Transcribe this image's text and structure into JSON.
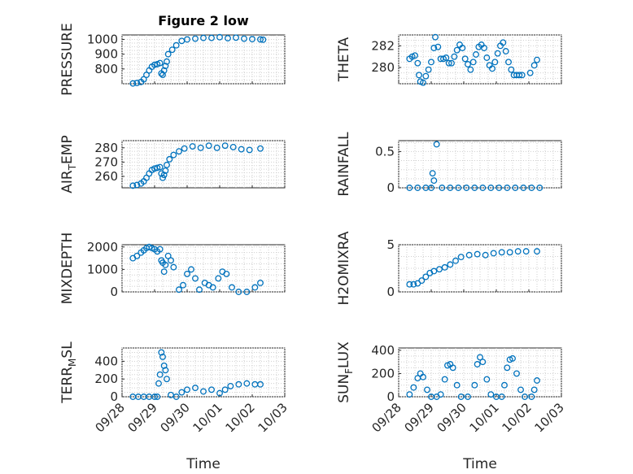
{
  "figure": {
    "title": "Figure 2 low",
    "accent_color": "#0072bd"
  },
  "chart_data": [
    {
      "type": "scatter",
      "ylabel": "PRESSURE",
      "xlabel": "",
      "ylim": [
        700,
        1030
      ],
      "yticks": [
        800,
        900,
        1000
      ],
      "xlim": [
        "09/28",
        "10/03"
      ],
      "xticks": [],
      "grid": true,
      "points": [
        [
          "09/28 08:00",
          702
        ],
        [
          "09/28 11:00",
          705
        ],
        [
          "09/28 14:00",
          712
        ],
        [
          "09/28 16:00",
          730
        ],
        [
          "09/28 18:00",
          760
        ],
        [
          "09/28 20:00",
          790
        ],
        [
          "09/28 22:00",
          815
        ],
        [
          "09/29 00:00",
          828
        ],
        [
          "09/29 02:00",
          832
        ],
        [
          "09/29 04:00",
          840
        ],
        [
          "09/29 05:00",
          770
        ],
        [
          "09/29 06:00",
          760
        ],
        [
          "09/29 07:00",
          790
        ],
        [
          "09/29 08:00",
          820
        ],
        [
          "09/29 09:00",
          850
        ],
        [
          "09/29 10:00",
          900
        ],
        [
          "09/29 13:00",
          930
        ],
        [
          "09/29 16:00",
          960
        ],
        [
          "09/29 20:00",
          990
        ],
        [
          "09/30 00:00",
          1000
        ],
        [
          "09/30 06:00",
          1005
        ],
        [
          "09/30 12:00",
          1010
        ],
        [
          "09/30 18:00",
          1010
        ],
        [
          "10/01 00:00",
          1015
        ],
        [
          "10/01 06:00",
          1008
        ],
        [
          "10/01 12:00",
          1012
        ],
        [
          "10/01 18:00",
          1005
        ],
        [
          "10/02 00:00",
          1002
        ],
        [
          "10/02 06:00",
          1000
        ],
        [
          "10/02 08:00",
          998
        ]
      ]
    },
    {
      "type": "scatter",
      "ylabel": "THETA",
      "xlabel": "",
      "ylim": [
        278.5,
        283
      ],
      "yticks": [
        280,
        282
      ],
      "xlim": [
        "09/28",
        "10/03"
      ],
      "xticks": [],
      "grid": true,
      "points": [
        [
          "09/28 08:00",
          280.8
        ],
        [
          "09/28 10:00",
          281.0
        ],
        [
          "09/28 12:00",
          281.1
        ],
        [
          "09/28 14:00",
          280.4
        ],
        [
          "09/28 15:00",
          279.3
        ],
        [
          "09/28 16:00",
          278.7
        ],
        [
          "09/28 18:00",
          278.6
        ],
        [
          "09/28 20:00",
          279.2
        ],
        [
          "09/28 22:00",
          279.8
        ],
        [
          "09/29 00:00",
          280.5
        ],
        [
          "09/29 02:00",
          281.8
        ],
        [
          "09/29 03:00",
          282.8
        ],
        [
          "09/29 05:00",
          281.9
        ],
        [
          "09/29 07:00",
          280.8
        ],
        [
          "09/29 09:00",
          280.8
        ],
        [
          "09/29 11:00",
          280.9
        ],
        [
          "09/29 13:00",
          280.4
        ],
        [
          "09/29 15:00",
          280.4
        ],
        [
          "09/29 17:00",
          281.0
        ],
        [
          "09/29 19:00",
          281.6
        ],
        [
          "09/29 21:00",
          282.1
        ],
        [
          "09/29 23:00",
          281.8
        ],
        [
          "09/30 01:00",
          280.8
        ],
        [
          "09/30 03:00",
          280.3
        ],
        [
          "09/30 05:00",
          279.8
        ],
        [
          "09/30 07:00",
          280.5
        ],
        [
          "09/30 09:00",
          281.2
        ],
        [
          "09/30 11:00",
          281.9
        ],
        [
          "09/30 13:00",
          282.1
        ],
        [
          "09/30 15:00",
          281.8
        ],
        [
          "09/30 17:00",
          280.9
        ],
        [
          "09/30 19:00",
          280.2
        ],
        [
          "09/30 21:00",
          279.9
        ],
        [
          "09/30 23:00",
          280.5
        ],
        [
          "10/01 01:00",
          281.3
        ],
        [
          "10/01 03:00",
          282.0
        ],
        [
          "10/01 05:00",
          282.3
        ],
        [
          "10/01 07:00",
          281.5
        ],
        [
          "10/01 09:00",
          280.5
        ],
        [
          "10/01 11:00",
          279.8
        ],
        [
          "10/01 13:00",
          279.3
        ],
        [
          "10/01 15:00",
          279.3
        ],
        [
          "10/01 17:00",
          279.3
        ],
        [
          "10/01 19:00",
          279.3
        ],
        [
          "10/02 01:00",
          279.5
        ],
        [
          "10/02 04:00",
          280.2
        ],
        [
          "10/02 06:00",
          280.7
        ]
      ]
    },
    {
      "type": "scatter",
      "ylabel": "AIR_TEMP",
      "xlabel": "",
      "ylim": [
        252,
        285
      ],
      "yticks": [
        260,
        270,
        280
      ],
      "xlim": [
        "09/28",
        "10/03"
      ],
      "xticks": [],
      "grid": true,
      "points": [
        [
          "09/28 08:00",
          253.5
        ],
        [
          "09/28 11:00",
          254.0
        ],
        [
          "09/28 14:00",
          255.0
        ],
        [
          "09/28 16:00",
          256.5
        ],
        [
          "09/28 18:00",
          259.0
        ],
        [
          "09/28 20:00",
          262.0
        ],
        [
          "09/28 22:00",
          264.5
        ],
        [
          "09/29 00:00",
          265.5
        ],
        [
          "09/29 02:00",
          266.0
        ],
        [
          "09/29 04:00",
          266.5
        ],
        [
          "09/29 05:00",
          262.0
        ],
        [
          "09/29 06:00",
          259.0
        ],
        [
          "09/29 07:00",
          261.0
        ],
        [
          "09/29 08:00",
          264.0
        ],
        [
          "09/29 09:00",
          268.0
        ],
        [
          "09/29 11:00",
          272.0
        ],
        [
          "09/29 14:00",
          275.0
        ],
        [
          "09/29 18:00",
          277.5
        ],
        [
          "09/29 22:00",
          279.5
        ],
        [
          "09/30 04:00",
          281.0
        ],
        [
          "09/30 10:00",
          280.0
        ],
        [
          "09/30 16:00",
          281.5
        ],
        [
          "09/30 22:00",
          280.0
        ],
        [
          "10/01 04:00",
          281.5
        ],
        [
          "10/01 10:00",
          280.5
        ],
        [
          "10/01 16:00",
          279.0
        ],
        [
          "10/01 22:00",
          278.5
        ],
        [
          "10/02 06:00",
          279.5
        ]
      ]
    },
    {
      "type": "scatter",
      "ylabel": "RAINFALL",
      "xlabel": "",
      "ylim": [
        0,
        0.65
      ],
      "yticks": [
        0,
        0.5
      ],
      "xlim": [
        "09/28",
        "10/03"
      ],
      "xticks": [],
      "grid": true,
      "points": [
        [
          "09/28 08:00",
          0
        ],
        [
          "09/28 14:00",
          0
        ],
        [
          "09/28 20:00",
          0
        ],
        [
          "09/29 00:00",
          0
        ],
        [
          "09/29 01:00",
          0.2
        ],
        [
          "09/29 02:00",
          0.1
        ],
        [
          "09/29 04:00",
          0.6
        ],
        [
          "09/29 08:00",
          0
        ],
        [
          "09/29 14:00",
          0
        ],
        [
          "09/29 20:00",
          0
        ],
        [
          "09/30 02:00",
          0
        ],
        [
          "09/30 08:00",
          0
        ],
        [
          "09/30 14:00",
          0
        ],
        [
          "09/30 20:00",
          0
        ],
        [
          "10/01 02:00",
          0
        ],
        [
          "10/01 08:00",
          0
        ],
        [
          "10/01 14:00",
          0
        ],
        [
          "10/01 20:00",
          0
        ],
        [
          "10/02 02:00",
          0
        ],
        [
          "10/02 08:00",
          0
        ]
      ]
    },
    {
      "type": "scatter",
      "ylabel": "MIXDEPTH",
      "xlabel": "",
      "ylim": [
        0,
        2100
      ],
      "yticks": [
        0,
        1000,
        2000
      ],
      "xlim": [
        "09/28",
        "10/03"
      ],
      "xticks": [],
      "grid": true,
      "points": [
        [
          "09/28 08:00",
          1500
        ],
        [
          "09/28 11:00",
          1600
        ],
        [
          "09/28 14:00",
          1750
        ],
        [
          "09/28 16:00",
          1850
        ],
        [
          "09/28 18:00",
          1950
        ],
        [
          "09/28 20:00",
          2000
        ],
        [
          "09/28 22:00",
          1950
        ],
        [
          "09/29 00:00",
          1900
        ],
        [
          "09/29 02:00",
          1800
        ],
        [
          "09/29 04:00",
          1900
        ],
        [
          "09/29 05:00",
          1400
        ],
        [
          "09/29 06:00",
          1300
        ],
        [
          "09/29 07:00",
          900
        ],
        [
          "09/29 08:00",
          1200
        ],
        [
          "09/29 10:00",
          1600
        ],
        [
          "09/29 12:00",
          1400
        ],
        [
          "09/29 14:00",
          1100
        ],
        [
          "09/29 18:00",
          100
        ],
        [
          "09/29 21:00",
          300
        ],
        [
          "09/30 00:00",
          800
        ],
        [
          "09/30 03:00",
          1000
        ],
        [
          "09/30 06:00",
          600
        ],
        [
          "09/30 09:00",
          100
        ],
        [
          "09/30 13:00",
          400
        ],
        [
          "09/30 16:00",
          300
        ],
        [
          "09/30 19:00",
          200
        ],
        [
          "09/30 23:00",
          600
        ],
        [
          "10/01 02:00",
          900
        ],
        [
          "10/01 05:00",
          800
        ],
        [
          "10/01 09:00",
          200
        ],
        [
          "10/01 14:00",
          0
        ],
        [
          "10/01 20:00",
          0
        ],
        [
          "10/02 02:00",
          200
        ],
        [
          "10/02 06:00",
          400
        ]
      ]
    },
    {
      "type": "scatter",
      "ylabel": "H2OMIXRA",
      "xlabel": "",
      "ylim": [
        0,
        5
      ],
      "yticks": [
        0,
        5
      ],
      "xlim": [
        "09/28",
        "10/03"
      ],
      "xticks": [],
      "grid": true,
      "points": [
        [
          "09/28 08:00",
          0.8
        ],
        [
          "09/28 11:00",
          0.8
        ],
        [
          "09/28 14:00",
          0.9
        ],
        [
          "09/28 17:00",
          1.2
        ],
        [
          "09/28 20:00",
          1.6
        ],
        [
          "09/28 23:00",
          2.0
        ],
        [
          "09/29 02:00",
          2.2
        ],
        [
          "09/29 06:00",
          2.4
        ],
        [
          "09/29 10:00",
          2.6
        ],
        [
          "09/29 14:00",
          2.9
        ],
        [
          "09/29 18:00",
          3.3
        ],
        [
          "09/29 22:00",
          3.7
        ],
        [
          "09/30 04:00",
          3.9
        ],
        [
          "09/30 10:00",
          4.0
        ],
        [
          "09/30 16:00",
          3.9
        ],
        [
          "09/30 22:00",
          4.1
        ],
        [
          "10/01 04:00",
          4.2
        ],
        [
          "10/01 10:00",
          4.2
        ],
        [
          "10/01 16:00",
          4.3
        ],
        [
          "10/01 22:00",
          4.3
        ],
        [
          "10/02 06:00",
          4.3
        ]
      ]
    },
    {
      "type": "scatter",
      "ylabel": "TERR_MSL",
      "xlabel": "Time",
      "ylim": [
        0,
        550
      ],
      "yticks": [
        0,
        200,
        400
      ],
      "xlim": [
        "09/28",
        "10/03"
      ],
      "xticks": [
        "09/28",
        "09/29",
        "09/30",
        "10/01",
        "10/02",
        "10/03"
      ],
      "grid": true,
      "points": [
        [
          "09/28 08:00",
          0
        ],
        [
          "09/28 12:00",
          0
        ],
        [
          "09/28 16:00",
          0
        ],
        [
          "09/28 20:00",
          0
        ],
        [
          "09/29 00:00",
          0
        ],
        [
          "09/29 02:00",
          0
        ],
        [
          "09/29 03:00",
          150
        ],
        [
          "09/29 04:00",
          250
        ],
        [
          "09/29 05:00",
          500
        ],
        [
          "09/29 06:00",
          450
        ],
        [
          "09/29 07:00",
          350
        ],
        [
          "09/29 08:00",
          300
        ],
        [
          "09/29 09:00",
          200
        ],
        [
          "09/29 12:00",
          20
        ],
        [
          "09/29 16:00",
          0
        ],
        [
          "09/29 20:00",
          50
        ],
        [
          "09/30 00:00",
          80
        ],
        [
          "09/30 06:00",
          100
        ],
        [
          "09/30 12:00",
          60
        ],
        [
          "09/30 18:00",
          80
        ],
        [
          "10/01 00:00",
          40
        ],
        [
          "10/01 04:00",
          80
        ],
        [
          "10/01 08:00",
          120
        ],
        [
          "10/01 14:00",
          140
        ],
        [
          "10/01 20:00",
          150
        ],
        [
          "10/02 02:00",
          140
        ],
        [
          "10/02 06:00",
          140
        ]
      ]
    },
    {
      "type": "scatter",
      "ylabel": "SUN_FLUX",
      "xlabel": "Time",
      "ylim": [
        0,
        420
      ],
      "yticks": [
        0,
        200,
        400
      ],
      "xlim": [
        "09/28",
        "10/03"
      ],
      "xticks": [
        "09/28",
        "09/29",
        "09/30",
        "10/01",
        "10/02",
        "10/03"
      ],
      "grid": true,
      "points": [
        [
          "09/28 08:00",
          20
        ],
        [
          "09/28 11:00",
          80
        ],
        [
          "09/28 14:00",
          160
        ],
        [
          "09/28 16:00",
          200
        ],
        [
          "09/28 18:00",
          170
        ],
        [
          "09/28 21:00",
          60
        ],
        [
          "09/29 00:00",
          0
        ],
        [
          "09/29 04:00",
          0
        ],
        [
          "09/29 07:00",
          20
        ],
        [
          "09/29 10:00",
          150
        ],
        [
          "09/29 12:00",
          270
        ],
        [
          "09/29 14:00",
          280
        ],
        [
          "09/29 16:00",
          250
        ],
        [
          "09/29 19:00",
          100
        ],
        [
          "09/29 22:00",
          0
        ],
        [
          "09/30 03:00",
          0
        ],
        [
          "09/30 08:00",
          100
        ],
        [
          "09/30 10:00",
          280
        ],
        [
          "09/30 12:00",
          340
        ],
        [
          "09/30 14:00",
          300
        ],
        [
          "09/30 17:00",
          150
        ],
        [
          "09/30 20:00",
          20
        ],
        [
          "10/01 00:00",
          0
        ],
        [
          "10/01 04:00",
          0
        ],
        [
          "10/01 06:00",
          100
        ],
        [
          "10/01 08:00",
          250
        ],
        [
          "10/01 10:00",
          320
        ],
        [
          "10/01 12:00",
          330
        ],
        [
          "10/01 15:00",
          200
        ],
        [
          "10/01 18:00",
          60
        ],
        [
          "10/01 21:00",
          0
        ],
        [
          "10/02 02:00",
          0
        ],
        [
          "10/02 04:00",
          60
        ],
        [
          "10/02 06:00",
          140
        ]
      ]
    }
  ]
}
